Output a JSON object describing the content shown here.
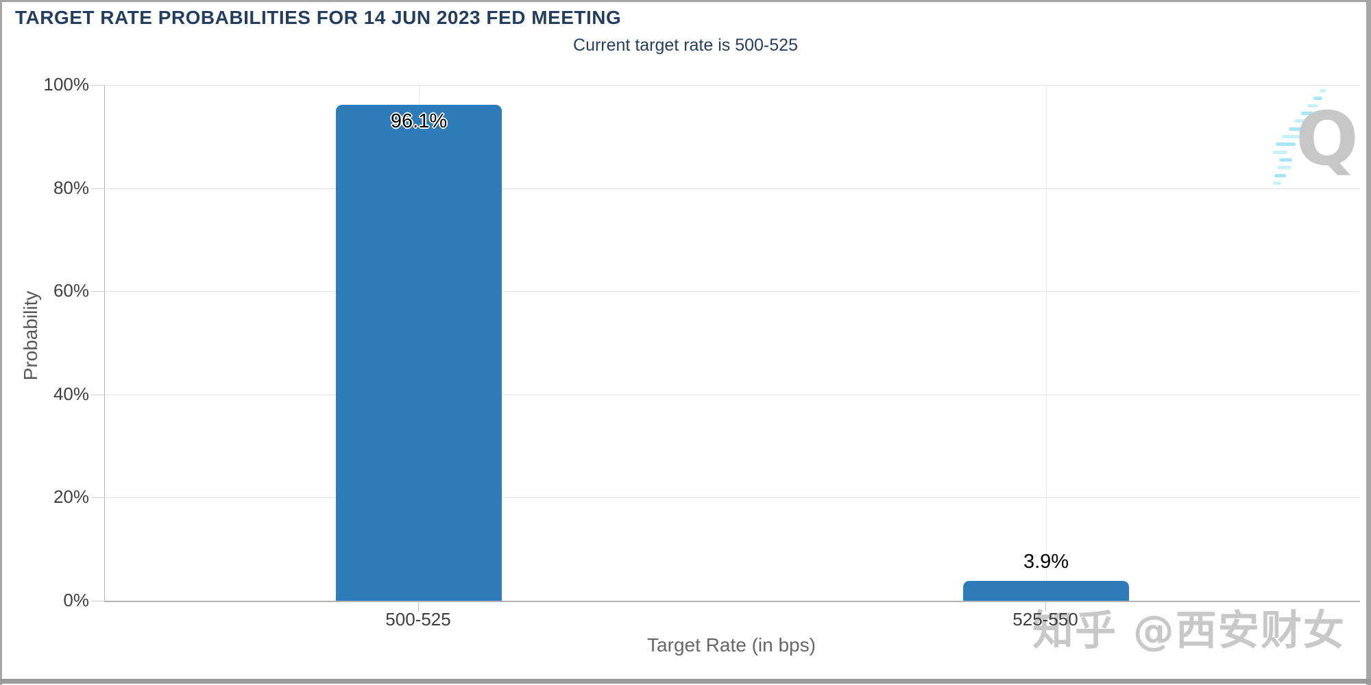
{
  "chart_data": {
    "type": "bar",
    "title": "TARGET RATE PROBABILITIES FOR 14 JUN 2023 FED MEETING",
    "subtitle": "Current target rate is 500-525",
    "categories": [
      "500-525",
      "525-550"
    ],
    "values": [
      96.1,
      3.9
    ],
    "value_labels": [
      "96.1%",
      "3.9%"
    ],
    "xlabel": "Target Rate (in bps)",
    "ylabel": "Probability",
    "ylim": [
      0,
      100
    ],
    "ytick_labels": [
      "0%",
      "20%",
      "40%",
      "60%",
      "80%",
      "100%"
    ],
    "grid": true,
    "legend": "none",
    "bar_color": "#2d7cb9"
  },
  "watermark": {
    "zhihu_text": "知乎 @西安财女",
    "logo_letter": "Q"
  },
  "colors": {
    "title": "#233e5f",
    "bar": "#2d7cb9",
    "gridline": "#e0e0e0",
    "axis_line": "#b3b3b3",
    "axis_label": "#3f3f3f",
    "axis_title": "#666666",
    "watermark_gray": "#c8c8c8",
    "logo_cyan": "#a4e6f4",
    "border": "#a6a6a6"
  }
}
